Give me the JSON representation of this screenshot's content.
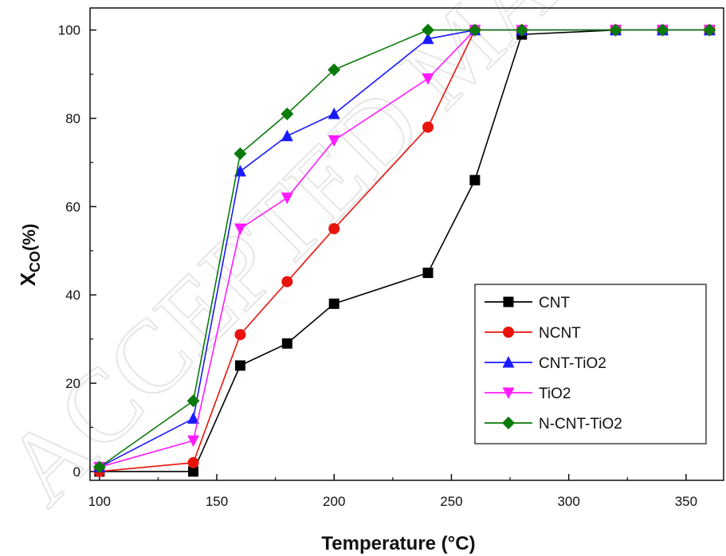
{
  "chart_data": {
    "type": "line",
    "xlabel": "Temperature (°C)",
    "ylabel_main": "X",
    "ylabel_sub": "CO",
    "ylabel_tail": "(%)",
    "xlim": [
      96,
      366
    ],
    "ylim": [
      -2,
      105
    ],
    "xticks": [
      100,
      150,
      200,
      250,
      300,
      350
    ],
    "yticks": [
      0,
      20,
      40,
      60,
      80,
      100
    ],
    "legend_position": "lower-right",
    "watermark_text": "ACCEPTED MANUSCRIPT",
    "series": [
      {
        "name": "CNT",
        "color": "#000000",
        "marker": "square",
        "x": [
          100,
          140,
          160,
          180,
          200,
          240,
          260,
          280,
          320,
          340,
          360
        ],
        "y": [
          0,
          0,
          24,
          29,
          38,
          45,
          66,
          99,
          100,
          100,
          100
        ]
      },
      {
        "name": "NCNT",
        "color": "#e8140c",
        "marker": "circle",
        "x": [
          100,
          140,
          160,
          180,
          200,
          240,
          260,
          280,
          320,
          340,
          360
        ],
        "y": [
          0,
          2,
          31,
          43,
          55,
          78,
          100,
          100,
          100,
          100,
          100
        ]
      },
      {
        "name": "CNT-TiO2",
        "color": "#1a1aff",
        "marker": "triangle-up",
        "x": [
          100,
          140,
          160,
          180,
          200,
          240,
          260,
          280,
          320,
          340,
          360
        ],
        "y": [
          1,
          12,
          68,
          76,
          81,
          98,
          100,
          100,
          100,
          100,
          100
        ]
      },
      {
        "name": "TiO2",
        "color": "#ff1aff",
        "marker": "triangle-down",
        "x": [
          100,
          140,
          160,
          180,
          200,
          240,
          260,
          280,
          320,
          340,
          360
        ],
        "y": [
          1,
          7,
          55,
          62,
          75,
          89,
          100,
          100,
          100,
          100,
          100
        ]
      },
      {
        "name": "N-CNT-TiO2",
        "color": "#0a7a0a",
        "marker": "diamond",
        "x": [
          100,
          140,
          160,
          180,
          200,
          240,
          260,
          280,
          320,
          340,
          360
        ],
        "y": [
          1,
          16,
          72,
          81,
          91,
          100,
          100,
          100,
          100,
          100,
          100
        ]
      }
    ]
  }
}
